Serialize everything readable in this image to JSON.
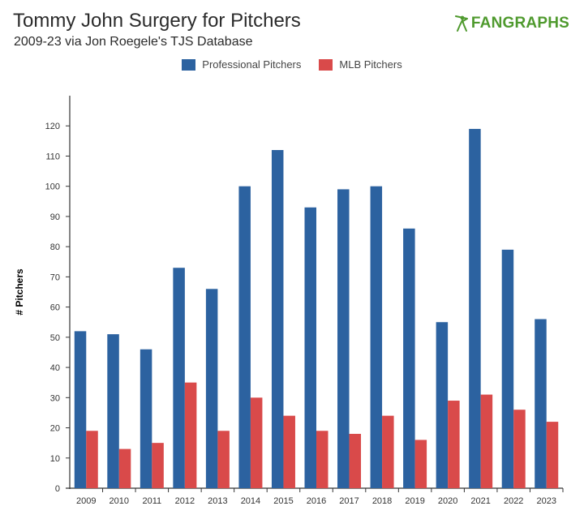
{
  "header": {
    "title": "Tommy John Surgery for Pitchers",
    "subtitle": "2009-23 via Jon Roegele's TJS Database",
    "logo_text": "FANGRAPHS"
  },
  "colors": {
    "professional": "#2c62a0",
    "mlb": "#d94a4a",
    "logo": "#4f9a2e"
  },
  "chart_data": {
    "type": "bar",
    "title": "Tommy John Surgery for Pitchers",
    "subtitle": "2009-23 via Jon Roegele's TJS Database",
    "xlabel": "",
    "ylabel": "# Pitchers",
    "ylim": [
      0,
      130
    ],
    "yticks": [
      0,
      10,
      20,
      30,
      40,
      50,
      60,
      70,
      80,
      90,
      100,
      110,
      120
    ],
    "legend_position": "top-center",
    "categories": [
      "2009",
      "2010",
      "2011",
      "2012",
      "2013",
      "2014",
      "2015",
      "2016",
      "2017",
      "2018",
      "2019",
      "2020",
      "2021",
      "2022",
      "2023"
    ],
    "series": [
      {
        "name": "Professional Pitchers",
        "values": [
          52,
          51,
          46,
          73,
          66,
          100,
          112,
          93,
          99,
          100,
          86,
          55,
          119,
          79,
          56
        ]
      },
      {
        "name": "MLB Pitchers",
        "values": [
          19,
          13,
          15,
          35,
          19,
          30,
          24,
          19,
          18,
          24,
          16,
          29,
          31,
          26,
          22
        ]
      }
    ]
  }
}
